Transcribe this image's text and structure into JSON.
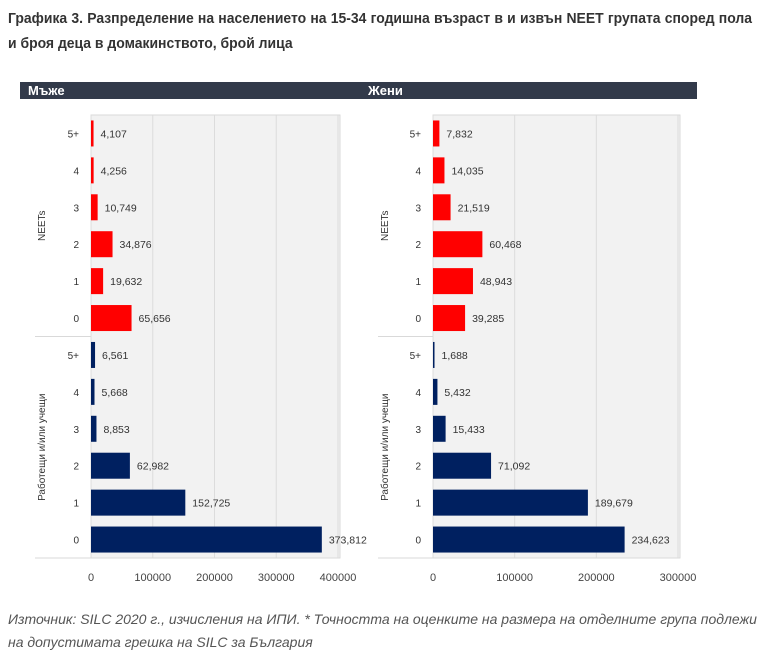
{
  "title": "Графика 3. Разпределение на населението на 15-34 годишна възраст в и извън NEET групата според пола и броя деца в домакинството, брой лица",
  "chart_data": [
    {
      "type": "bar",
      "panel": "Мъже",
      "orientation": "horizontal",
      "groups": [
        "NEETs",
        "Работещи и/или учещи"
      ],
      "categories": [
        "5+",
        "4",
        "3",
        "2",
        "1",
        "0"
      ],
      "series": [
        {
          "name": "NEETs",
          "color": "#ff0000",
          "values": [
            4107,
            4256,
            10749,
            34876,
            19632,
            65656
          ],
          "labels": [
            "4,107",
            "4,256",
            "10,749",
            "34,876",
            "19,632",
            "65,656"
          ]
        },
        {
          "name": "Работещи и/или учещи",
          "color": "#002060",
          "values": [
            6561,
            5668,
            8853,
            62982,
            152725,
            373812
          ],
          "labels": [
            "6,561",
            "5,668",
            "8,853",
            "62,982",
            "152,725",
            "373,812"
          ]
        }
      ],
      "xlim": [
        0,
        400000
      ],
      "xticks": [
        "0",
        "100000",
        "200000",
        "300000",
        "400000"
      ],
      "grid": true
    },
    {
      "type": "bar",
      "panel": "Жени",
      "orientation": "horizontal",
      "groups": [
        "NEETs",
        "Работещи и/или учещи"
      ],
      "categories": [
        "5+",
        "4",
        "3",
        "2",
        "1",
        "0"
      ],
      "series": [
        {
          "name": "NEETs",
          "color": "#ff0000",
          "values": [
            7832,
            14035,
            21519,
            60468,
            48943,
            39285
          ],
          "labels": [
            "7,832",
            "14,035",
            "21,519",
            "60,468",
            "48,943",
            "39,285"
          ]
        },
        {
          "name": "Работещи и/или учещи",
          "color": "#002060",
          "values": [
            1688,
            5432,
            15433,
            71092,
            189679,
            234623
          ],
          "labels": [
            "1,688",
            "5,432",
            "15,433",
            "71,092",
            "189,679",
            "234,623"
          ]
        }
      ],
      "xlim": [
        0,
        300000
      ],
      "xticks": [
        "0",
        "100000",
        "200000",
        "300000"
      ],
      "grid": true
    }
  ],
  "note": "Източник: SILC 2020 г., изчисления на ИПИ. * Точността на оценките на размера на отделните група подлежи на допустимата грешка на SILC за България"
}
